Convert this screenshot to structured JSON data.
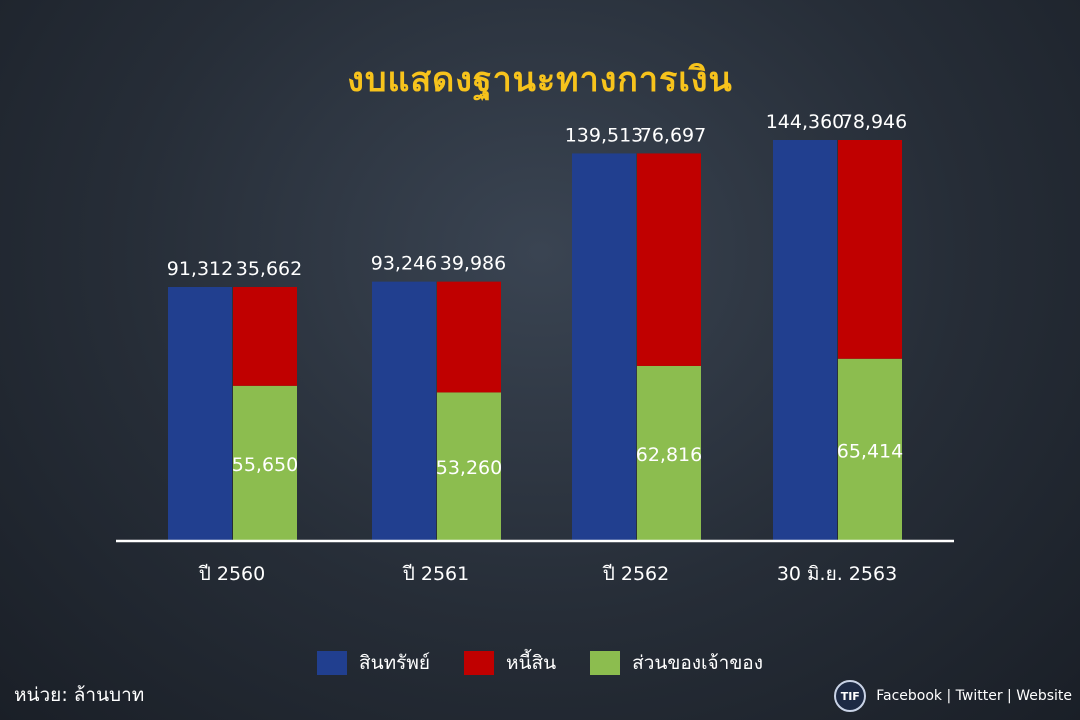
{
  "title": "งบแสดงฐานะทางการเงิน",
  "colors": {
    "title": "#f7c31c",
    "assets": "#213f8f",
    "liabilities": "#c00000",
    "equity": "#8cbd4f",
    "axis": "#ffffff"
  },
  "legend": [
    {
      "label": "สินทรัพย์",
      "color": "#213f8f"
    },
    {
      "label": "หนี้สิน",
      "color": "#c00000"
    },
    {
      "label": "ส่วนของเจ้าของ",
      "color": "#8cbd4f"
    }
  ],
  "unit_label": "หน่วย: ล้านบาท",
  "footer": {
    "logo_text": "TIF",
    "social": "Facebook | Twitter | Website"
  },
  "chart_data": {
    "type": "bar",
    "title": "งบแสดงฐานะทางการเงิน",
    "categories": [
      "ปี 2560",
      "ปี 2561",
      "ปี 2562",
      "30 มิ.ย. 2563"
    ],
    "series": [
      {
        "name": "สินทรัพย์",
        "values": [
          91312,
          93246,
          139513,
          144360
        ],
        "labels": [
          "91,312",
          "93,246",
          "139,513",
          "144,360"
        ]
      },
      {
        "name": "หนี้สิน",
        "values": [
          35662,
          39986,
          76697,
          78946
        ],
        "labels": [
          "35,662",
          "39,986",
          "76,697",
          "78,946"
        ],
        "stack": "second"
      },
      {
        "name": "ส่วนของเจ้าของ",
        "values": [
          55650,
          53260,
          62816,
          65414
        ],
        "labels": [
          "55,650",
          "53,260",
          "62,816",
          "65,414"
        ],
        "stack": "second"
      }
    ],
    "ylim": [
      0,
      150000
    ],
    "grid": false,
    "legend_position": "bottom"
  }
}
